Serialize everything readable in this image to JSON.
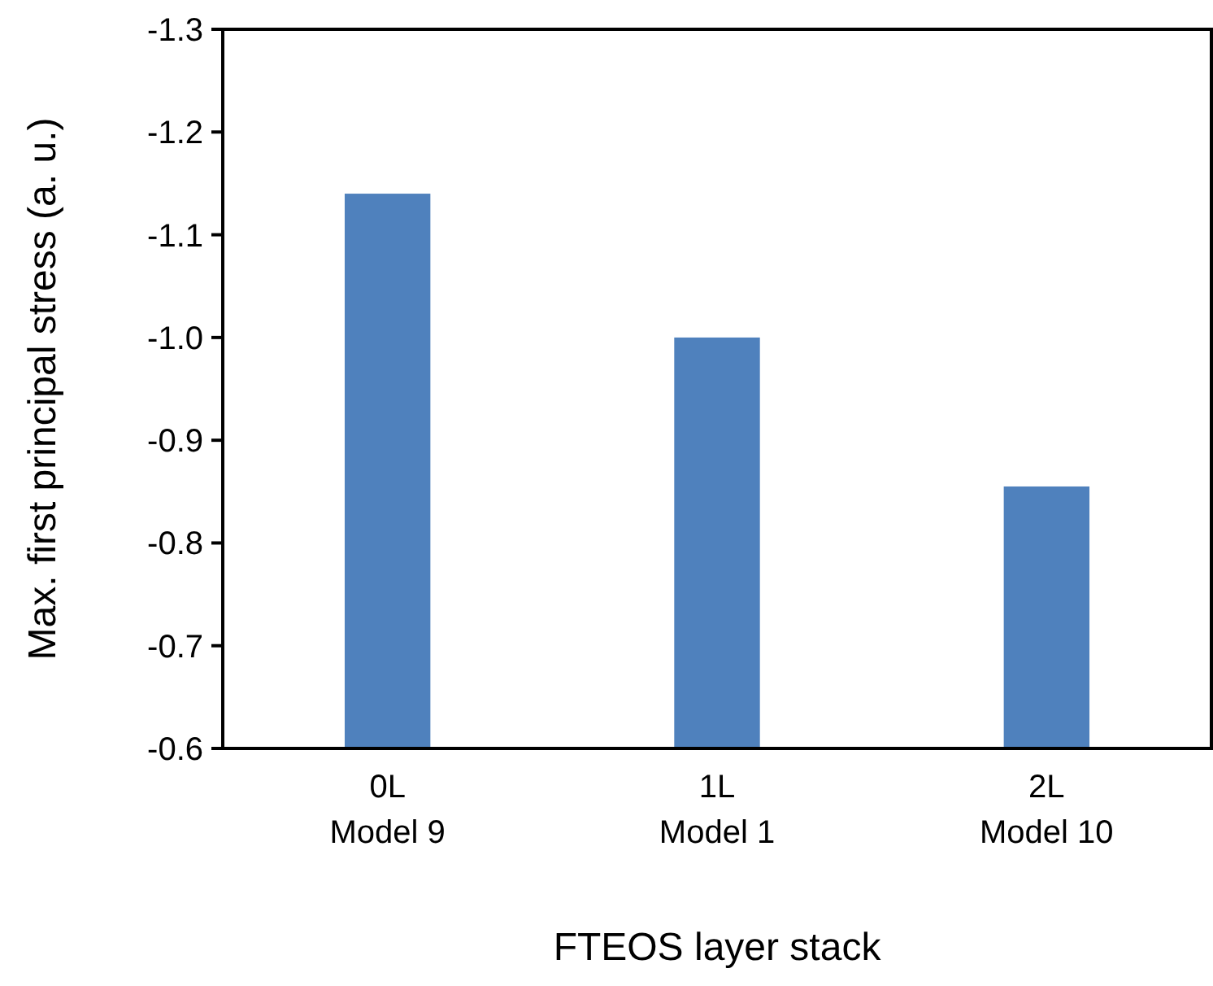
{
  "chart_data": {
    "type": "bar",
    "xlabel": "FTEOS layer stack",
    "ylabel": "Max. first principal stress (a. u.)",
    "categories": [
      "0L\nModel 9",
      "1L\nModel 1",
      "2L\nModel 10"
    ],
    "values": [
      -1.14,
      -1.0,
      -0.855
    ],
    "color": "#4f81bd",
    "ylim": [
      -0.6,
      -1.3
    ],
    "yticks": [
      {
        "value": -0.6,
        "label": "-0.6"
      },
      {
        "value": -0.7,
        "label": "-0.7"
      },
      {
        "value": -0.8,
        "label": "-0.8"
      },
      {
        "value": -0.9,
        "label": "-0.9"
      },
      {
        "value": -1.0,
        "label": "-1.0"
      },
      {
        "value": -1.1,
        "label": "-1.1"
      },
      {
        "value": -1.2,
        "label": "-1.2"
      },
      {
        "value": -1.3,
        "label": "-1.3"
      }
    ],
    "grid": false
  }
}
